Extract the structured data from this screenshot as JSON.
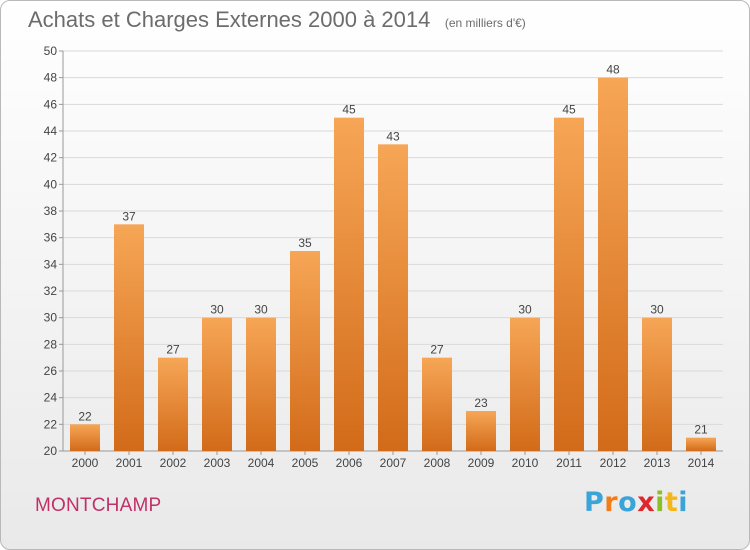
{
  "header": {
    "title": "Achats et Charges Externes 2000 à 2014",
    "subtitle": "(en milliers d'€)"
  },
  "footer": {
    "commune": "MONTCHAMP",
    "logo_text": "Proxiti",
    "logo_colors": [
      "#3aa3d8",
      "#f07d1a",
      "#3aa3d8",
      "#e0262d",
      "#8cbf26",
      "#f3b71b",
      "#3aa3d8"
    ]
  },
  "colors": {
    "bar_light": "#f6a656",
    "bar_dark": "#d26b19",
    "grid": "#d9d9d9",
    "axis_text": "#444444"
  },
  "chart_data": {
    "type": "bar",
    "title": "Achats et Charges Externes 2000 à 2014",
    "subtitle": "(en milliers d'€)",
    "categories": [
      "2000",
      "2001",
      "2002",
      "2003",
      "2004",
      "2005",
      "2006",
      "2007",
      "2008",
      "2009",
      "2010",
      "2011",
      "2012",
      "2013",
      "2014"
    ],
    "values": [
      22,
      37,
      27,
      30,
      30,
      35,
      45,
      43,
      27,
      23,
      30,
      45,
      48,
      30,
      21
    ],
    "ylim": [
      20,
      50
    ],
    "yticks": [
      20,
      22,
      24,
      26,
      28,
      30,
      32,
      34,
      36,
      38,
      40,
      42,
      44,
      46,
      48,
      50
    ],
    "grid": true,
    "data_labels": true
  }
}
